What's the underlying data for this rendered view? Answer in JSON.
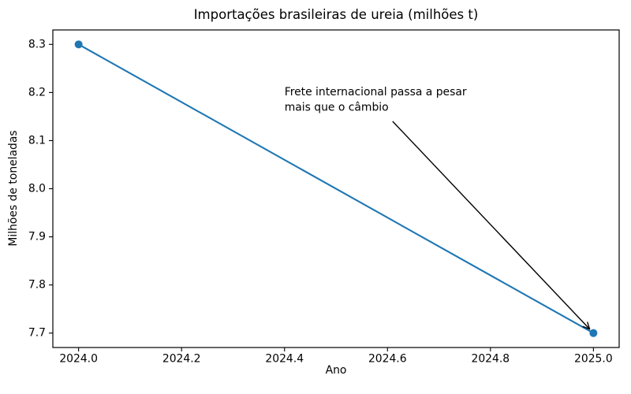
{
  "chart_data": {
    "type": "line",
    "title": "Importações brasileiras de ureia (milhões t)",
    "xlabel": "Ano",
    "ylabel": "Milhões de toneladas",
    "series": [
      {
        "x": [
          2024,
          2025
        ],
        "y": [
          8.3,
          7.7
        ],
        "color": "#1f77b4",
        "marker": "o"
      }
    ],
    "xlim": [
      2023.95,
      2025.05
    ],
    "ylim": [
      7.67,
      8.33
    ],
    "x_ticks": [
      2024.0,
      2024.2,
      2024.4,
      2024.6,
      2024.8,
      2025.0
    ],
    "x_tick_labels": [
      "2024.0",
      "2024.2",
      "2024.4",
      "2024.6",
      "2024.8",
      "2025.0"
    ],
    "y_ticks": [
      7.7,
      7.8,
      7.9,
      8.0,
      8.1,
      8.2,
      8.3
    ],
    "y_tick_labels": [
      "7.7",
      "7.8",
      "7.9",
      "8.0",
      "8.1",
      "8.2",
      "8.3"
    ],
    "grid": false,
    "legend": "none",
    "annotation": {
      "text_lines": [
        "Frete internacional passa a pesar",
        "mais que o câmbio"
      ],
      "text_xy": [
        2024.4,
        8.21
      ],
      "arrow_start": [
        2024.61,
        8.14
      ],
      "target": [
        2025,
        7.7
      ],
      "arrow_color": "#000000"
    },
    "axis_color": "#000000",
    "text_color": "#000000",
    "background": "#ffffff"
  }
}
